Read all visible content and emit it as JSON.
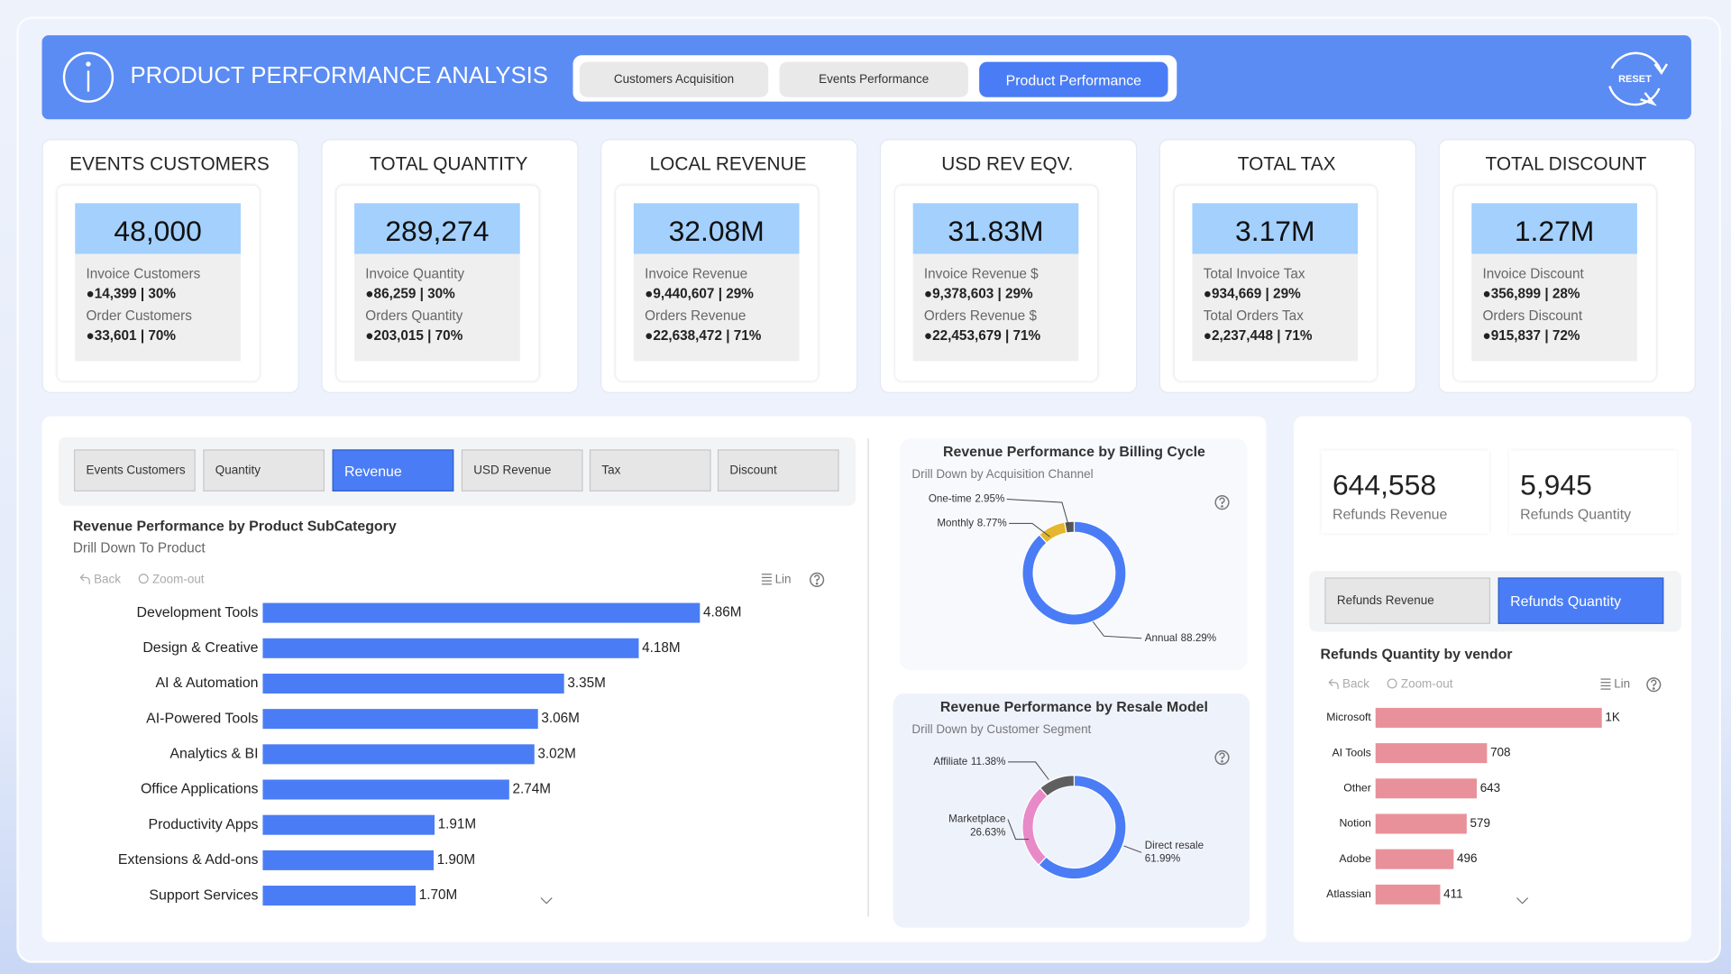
{
  "header": {
    "title": "PRODUCT PERFORMANCE ANALYSIS",
    "tabs": [
      "Customers Acquisition",
      "Events Performance",
      "Product Performance"
    ],
    "reset": "RESET"
  },
  "kpis": [
    {
      "title": "EVENTS CUSTOMERS",
      "value": "48,000",
      "lines": [
        "Invoice Customers",
        "●14,399 | 30%",
        "Order Customers",
        "●33,601 | 70%"
      ]
    },
    {
      "title": "TOTAL QUANTITY",
      "value": "289,274",
      "lines": [
        "Invoice Quantity",
        "●86,259 | 30%",
        "Orders Quantity",
        "●203,015 | 70%"
      ]
    },
    {
      "title": "LOCAL REVENUE",
      "value": "32.08M",
      "lines": [
        "Invoice Revenue",
        "●9,440,607 | 29%",
        "Orders Revenue",
        "●22,638,472 | 71%"
      ]
    },
    {
      "title": "USD REV EQV.",
      "value": "31.83M",
      "lines": [
        "Invoice Revenue $",
        "●9,378,603 | 29%",
        "Orders Revenue $",
        "●22,453,679 | 71%"
      ]
    },
    {
      "title": "TOTAL TAX",
      "value": "3.17M",
      "lines": [
        "Total Invoice Tax",
        "●934,669 | 29%",
        "Total Orders Tax",
        "●2,237,448 | 71%"
      ]
    },
    {
      "title": "TOTAL DISCOUNT",
      "value": "1.27M",
      "lines": [
        "Invoice Discount",
        "●356,899 | 28%",
        "Orders Discount",
        "●915,837 | 72%"
      ]
    }
  ],
  "measure_buttons": [
    "Events Customers",
    "Quantity",
    "Revenue",
    "USD Revenue",
    "Tax",
    "Discount"
  ],
  "refund_kpis": [
    {
      "value": "644,558",
      "label": "Refunds Revenue"
    },
    {
      "value": "5,945",
      "label": "Refunds Quantity"
    }
  ],
  "refund_buttons": [
    "Refunds Revenue",
    "Refunds Quantity"
  ],
  "chart_controls": {
    "back": "Back",
    "zoom_out": "Zoom-out",
    "lin": "Lin"
  },
  "chart_data": [
    {
      "type": "bar",
      "title": "Revenue Performance by Product SubCategory",
      "subtitle": "Drill Down To Product",
      "categories": [
        "Development Tools",
        "Design & Creative",
        "AI & Automation",
        "AI-Powered Tools",
        "Analytics & BI",
        "Office Applications",
        "Productivity Apps",
        "Extensions & Add-ons",
        "Support Services"
      ],
      "values": [
        4860000,
        4180000,
        3350000,
        3060000,
        3020000,
        2740000,
        1910000,
        1900000,
        1700000
      ],
      "value_labels": [
        "4.86M",
        "4.18M",
        "3.35M",
        "3.06M",
        "3.02M",
        "2.74M",
        "1.91M",
        "1.90M",
        "1.70M"
      ],
      "color": "#4a7df5"
    },
    {
      "type": "donut",
      "title": "Revenue Performance by Billing Cycle",
      "subtitle": "Drill Down by Acquisition Channel",
      "categories": [
        "Annual",
        "Monthly",
        "One-time"
      ],
      "values": [
        88.29,
        8.77,
        2.95
      ],
      "value_labels": [
        "88.29%",
        "8.77%",
        "2.95%"
      ],
      "colors": [
        "#4a7df5",
        "#e5b72e",
        "#555555"
      ]
    },
    {
      "type": "donut",
      "title": "Revenue Performance by Resale Model",
      "subtitle": "Drill Down by Customer Segment",
      "categories": [
        "Direct resale",
        "Marketplace",
        "Affiliate"
      ],
      "values": [
        61.99,
        26.63,
        11.38
      ],
      "value_labels": [
        "61.99%",
        "26.63%",
        "11.38%"
      ],
      "colors": [
        "#4a7df5",
        "#e98ac8",
        "#5f5f5f"
      ]
    },
    {
      "type": "bar",
      "title": "Refunds Quantity by vendor",
      "categories": [
        "Microsoft",
        "AI Tools",
        "Other",
        "Notion",
        "Adobe",
        "Atlassian"
      ],
      "values": [
        1437,
        708,
        643,
        579,
        496,
        411
      ],
      "value_labels": [
        "1K",
        "708",
        "643",
        "579",
        "496",
        "411"
      ],
      "color": "#e8919a"
    }
  ]
}
